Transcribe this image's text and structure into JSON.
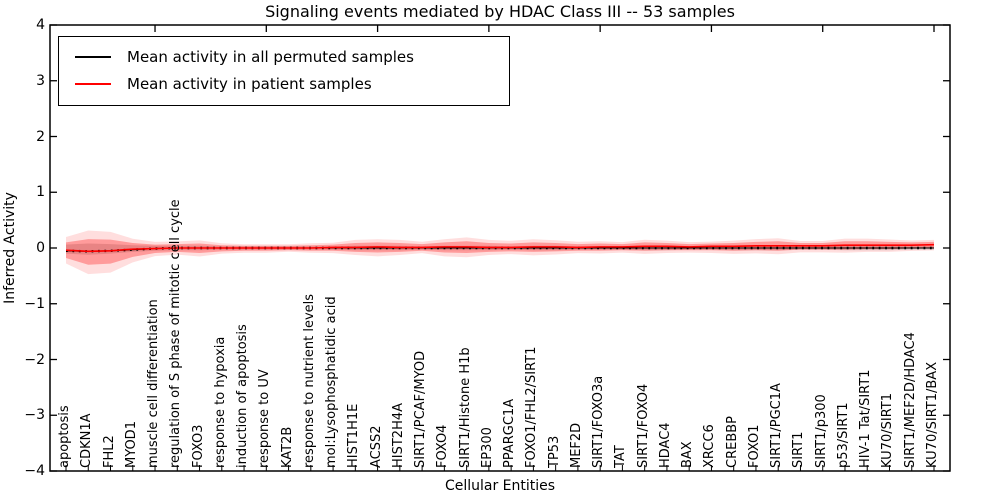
{
  "figure": {
    "title": "Signaling events mediated by HDAC Class III -- 53 samples",
    "xlabel": "Cellular Entities",
    "ylabel": "Inferred Activity"
  },
  "legend": {
    "items": [
      {
        "label": "Mean activity in all permuted samples",
        "color": "#000000"
      },
      {
        "label": "Mean activity in patient samples",
        "color": "#ff0000"
      }
    ]
  },
  "chart_data": {
    "type": "line",
    "title": "Signaling events mediated by HDAC Class III -- 53 samples",
    "xlabel": "Cellular Entities",
    "ylabel": "Inferred Activity",
    "ylim": [
      -4,
      4
    ],
    "yticks": [
      -4,
      -3,
      -2,
      -1,
      0,
      1,
      2,
      3,
      4
    ],
    "grid": false,
    "legend_position": "upper left",
    "categories": [
      "apoptosis",
      "CDKN1A",
      "FHL2",
      "MYOD1",
      "muscle cell differentiation",
      "regulation of S phase of mitotic cell cycle",
      "FOXO3",
      "response to hypoxia",
      "induction of apoptosis",
      "response to UV",
      "KAT2B",
      "response to nutrient levels",
      "mol:Lysophosphatidic acid",
      "HIST1H1E",
      "ACSS2",
      "HIST2H4A",
      "SIRT1/PCAF/MYOD",
      "FOXO4",
      "SIRT1/Histone H1b",
      "EP300",
      "PPARGC1A",
      "FOXO1/FHL2/SIRT1",
      "TP53",
      "MEF2D",
      "SIRT1/FOXO3a",
      "TAT",
      "SIRT1/FOXO4",
      "HDAC4",
      "BAX",
      "XRCC6",
      "CREBBP",
      "FOXO1",
      "SIRT1/PGC1A",
      "SIRT1",
      "SIRT1/p300",
      "p53/SIRT1",
      "HIV-1 Tat/SIRT1",
      "KU70/SIRT1",
      "SIRT1/MEF2D/HDAC4",
      "KU70/SIRT1/BAX"
    ],
    "series": [
      {
        "name": "Mean activity in all permuted samples",
        "color": "#000000",
        "band_color": "rgba(120,120,120,0.28)",
        "values": [
          -0.05,
          -0.06,
          -0.05,
          -0.03,
          -0.01,
          0,
          0,
          0,
          0,
          0,
          0,
          0,
          0,
          0,
          0,
          0,
          0,
          0,
          0,
          0,
          0,
          0,
          0,
          0,
          0,
          0,
          0,
          0,
          0,
          0,
          0,
          0,
          0,
          0,
          0,
          0,
          0,
          0,
          0,
          0
        ],
        "band_upper": [
          0.06,
          0.08,
          0.07,
          0.05,
          0.04,
          0.04,
          0.04,
          0.03,
          0.03,
          0.03,
          0.03,
          0.03,
          0.03,
          0.04,
          0.04,
          0.04,
          0.03,
          0.04,
          0.04,
          0.04,
          0.03,
          0.04,
          0.04,
          0.03,
          0.03,
          0.03,
          0.04,
          0.04,
          0.03,
          0.03,
          0.04,
          0.04,
          0.04,
          0.03,
          0.03,
          0.04,
          0.04,
          0.04,
          0.03,
          0.03
        ],
        "band_lower": [
          -0.1,
          -0.12,
          -0.1,
          -0.07,
          -0.05,
          -0.04,
          -0.04,
          -0.03,
          -0.03,
          -0.03,
          -0.03,
          -0.03,
          -0.03,
          -0.04,
          -0.04,
          -0.04,
          -0.03,
          -0.04,
          -0.04,
          -0.04,
          -0.03,
          -0.04,
          -0.04,
          -0.03,
          -0.03,
          -0.03,
          -0.04,
          -0.04,
          -0.03,
          -0.03,
          -0.04,
          -0.04,
          -0.04,
          -0.03,
          -0.03,
          -0.04,
          -0.04,
          -0.04,
          -0.03,
          -0.03
        ]
      },
      {
        "name": "Mean activity in patient samples",
        "color": "#ff0000",
        "band_color": "rgba(255,0,0,0.30)",
        "values": [
          -0.04,
          -0.06,
          -0.05,
          -0.02,
          -0.01,
          0,
          0,
          0,
          0,
          0,
          0,
          0,
          0.01,
          0.01,
          0.02,
          0.01,
          0.01,
          0.02,
          0.02,
          0.01,
          0.01,
          0.02,
          0.02,
          0.01,
          0.02,
          0.02,
          0.03,
          0.03,
          0.02,
          0.03,
          0.03,
          0.04,
          0.04,
          0.04,
          0.04,
          0.05,
          0.05,
          0.05,
          0.05,
          0.06
        ],
        "band_upper": [
          0.1,
          0.16,
          0.15,
          0.09,
          0.06,
          0.07,
          0.08,
          0.05,
          0.04,
          0.04,
          0.04,
          0.05,
          0.06,
          0.09,
          0.1,
          0.09,
          0.07,
          0.1,
          0.12,
          0.09,
          0.08,
          0.1,
          0.09,
          0.07,
          0.08,
          0.07,
          0.1,
          0.09,
          0.07,
          0.08,
          0.09,
          0.11,
          0.12,
          0.09,
          0.09,
          0.12,
          0.12,
          0.11,
          0.1,
          0.11
        ],
        "band_lower": [
          -0.18,
          -0.3,
          -0.28,
          -0.16,
          -0.09,
          -0.07,
          -0.09,
          -0.06,
          -0.05,
          -0.05,
          -0.04,
          -0.05,
          -0.05,
          -0.07,
          -0.08,
          -0.07,
          -0.05,
          -0.08,
          -0.09,
          -0.07,
          -0.06,
          -0.07,
          -0.06,
          -0.05,
          -0.05,
          -0.04,
          -0.05,
          -0.04,
          -0.04,
          -0.04,
          -0.05,
          -0.04,
          -0.05,
          -0.03,
          -0.03,
          -0.03,
          -0.02,
          -0.02,
          -0.01,
          0
        ]
      }
    ]
  }
}
